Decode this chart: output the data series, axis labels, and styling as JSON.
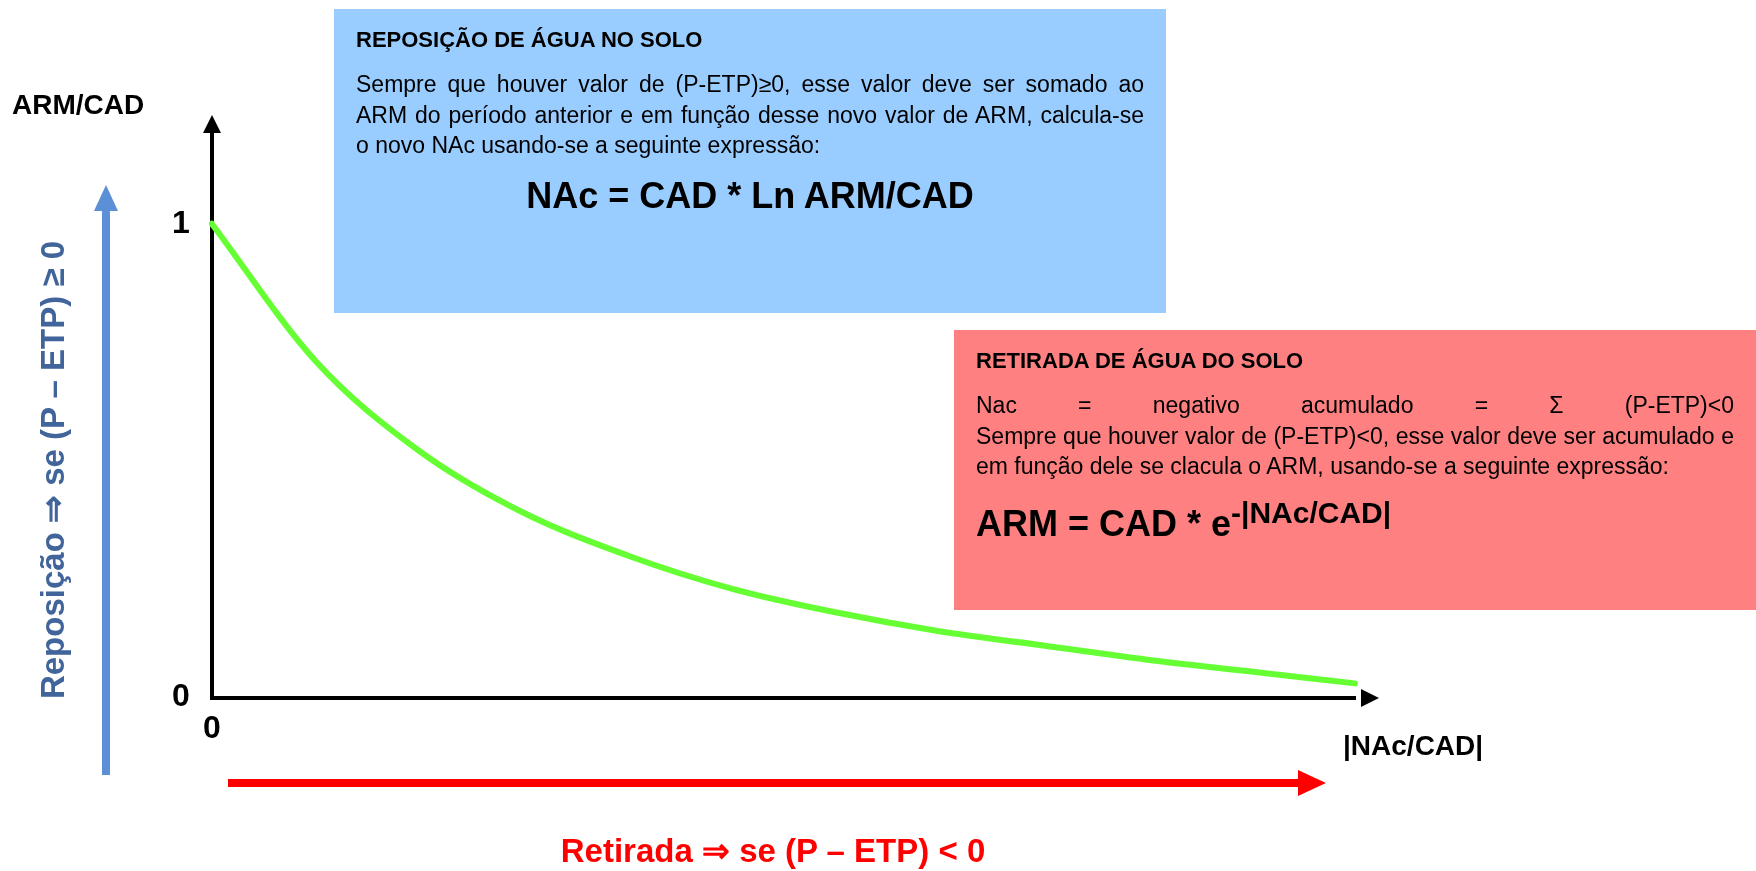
{
  "chart_data": {
    "type": "line",
    "xlabel": "|NAc/CAD|",
    "ylabel": "ARM/CAD",
    "categories": [
      "0",
      null,
      null,
      null,
      null,
      null,
      null,
      null,
      null,
      null,
      null,
      null
    ],
    "values": [
      1.0,
      0.71,
      0.52,
      0.39,
      0.3,
      0.23,
      0.18,
      0.14,
      0.11,
      0.08,
      0.055,
      0.03
    ],
    "color": "#66ff33",
    "ylim": [
      0,
      1.2
    ],
    "yticks": [
      0,
      1
    ],
    "grid": false,
    "legend": false,
    "marker": "none",
    "line_style": "solid",
    "annotations": [
      "REPOSIÇÃO DE ÁGUA NO SOLO",
      "Sempre que houver valor de (P-ETP)≥0, esse valor deve ser somado ao ARM do período anterior e em função desse novo valor de ARM, calcula-se o novo NAc usando-se a seguinte expressão:",
      "NAc = CAD * Ln ARM/CAD",
      "RETIRADA DE ÁGUA DO SOLO",
      "Nac = negativo acumulado = Σ (P-ETP)<0",
      "Sempre que houver valor de (P-ETP)<0, esse valor deve ser acumulado e em função dele se clacula o ARM, usando-se a seguinte expressão:",
      "ARM = CAD * e$^{-|NAc/CAD|}$",
      "Reposição ⇒ se (P – ETP) ≥ 0",
      "Retirada ⇒ se (P – ETP) < 0"
    ]
  }
}
